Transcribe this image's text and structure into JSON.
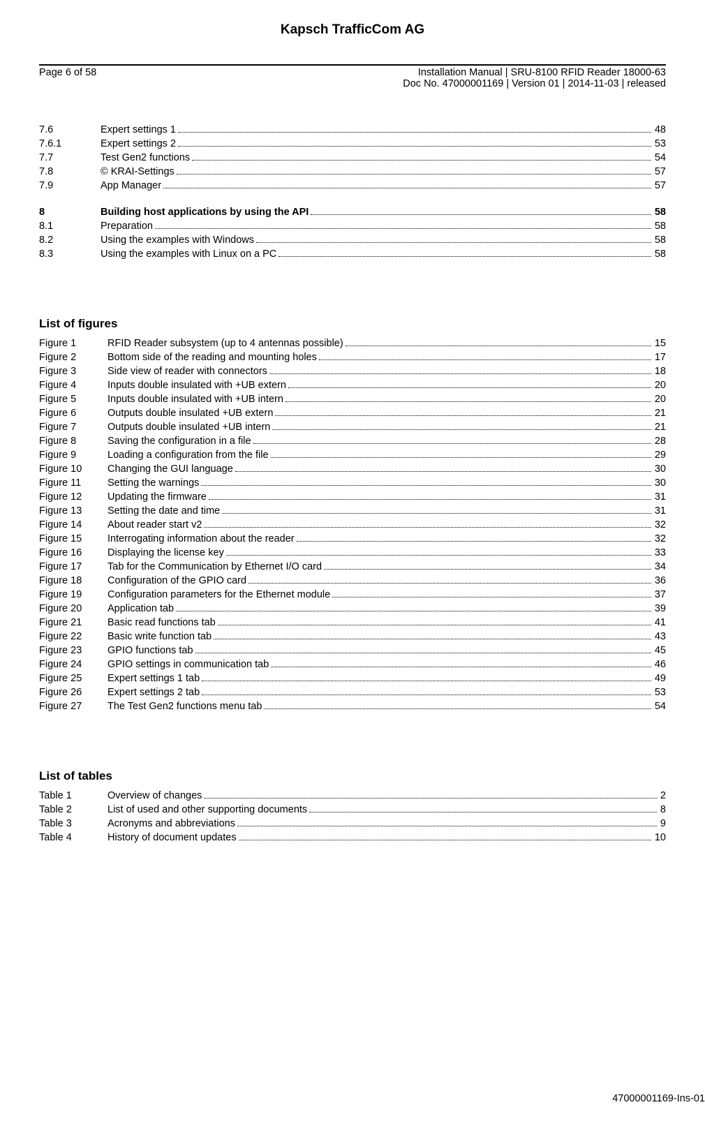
{
  "header": {
    "company": "Kapsch TrafficCom AG",
    "page_label": "Page 6 of 58",
    "doc_line1": "Installation Manual | SRU-8100 RFID Reader 18000-63",
    "doc_line2": "Doc No. 47000001169 | Version 01 | 2014-11-03 | released"
  },
  "toc_top": [
    {
      "num": "7.6",
      "title": "Expert settings 1",
      "page": "48",
      "bold": false
    },
    {
      "num": "7.6.1",
      "title": "Expert settings 2",
      "page": "53",
      "bold": false
    },
    {
      "num": "7.7",
      "title": "Test Gen2 functions",
      "page": "54",
      "bold": false
    },
    {
      "num": "7.8",
      "title": "© KRAI-Settings",
      "page": "57",
      "bold": false
    },
    {
      "num": "7.9",
      "title": "App Manager",
      "page": "57",
      "bold": false
    }
  ],
  "toc_section8_head": {
    "num": "8",
    "title": "Building host applications by using the API",
    "page": "58",
    "bold": true
  },
  "toc_section8": [
    {
      "num": "8.1",
      "title": "Preparation",
      "page": "58",
      "bold": false
    },
    {
      "num": "8.2",
      "title": "Using the examples with Windows",
      "page": "58",
      "bold": false
    },
    {
      "num": "8.3",
      "title": "Using the examples with Linux on a PC",
      "page": "58",
      "bold": false
    }
  ],
  "figures_heading": "List of figures",
  "figures": [
    {
      "num": "Figure 1",
      "title": "RFID Reader subsystem (up to 4 antennas possible)",
      "page": "15"
    },
    {
      "num": "Figure 2",
      "title": "Bottom side of the reading and mounting holes",
      "page": "17"
    },
    {
      "num": "Figure 3",
      "title": "Side view of reader with connectors",
      "page": "18"
    },
    {
      "num": "Figure 4",
      "title": "Inputs double insulated with +UB extern",
      "page": "20"
    },
    {
      "num": "Figure 5",
      "title": "Inputs double insulated with +UB intern",
      "page": "20"
    },
    {
      "num": "Figure 6",
      "title": "Outputs double insulated +UB extern",
      "page": "21"
    },
    {
      "num": "Figure 7",
      "title": "Outputs double insulated +UB intern",
      "page": "21"
    },
    {
      "num": "Figure 8",
      "title": "Saving the configuration in a file",
      "page": "28"
    },
    {
      "num": "Figure 9",
      "title": "Loading a configuration from the file",
      "page": "29"
    },
    {
      "num": "Figure 10",
      "title": "Changing the GUI language",
      "page": "30"
    },
    {
      "num": "Figure 11",
      "title": "Setting the warnings",
      "page": "30"
    },
    {
      "num": "Figure 12",
      "title": "Updating the firmware",
      "page": "31"
    },
    {
      "num": "Figure 13",
      "title": "Setting the date and time",
      "page": "31"
    },
    {
      "num": "Figure 14",
      "title": "About reader start v2",
      "page": "32"
    },
    {
      "num": "Figure 15",
      "title": "Interrogating information about the reader",
      "page": "32"
    },
    {
      "num": "Figure 16",
      "title": "Displaying the license key",
      "page": "33"
    },
    {
      "num": "Figure 17",
      "title": "Tab for the Communication by Ethernet I/O card",
      "page": "34"
    },
    {
      "num": "Figure 18",
      "title": "Configuration of the GPIO card",
      "page": "36"
    },
    {
      "num": "Figure 19",
      "title": "Configuration parameters for the Ethernet module",
      "page": "37"
    },
    {
      "num": "Figure 20",
      "title": "Application tab",
      "page": "39"
    },
    {
      "num": "Figure 21",
      "title": "Basic read functions tab",
      "page": "41"
    },
    {
      "num": "Figure 22",
      "title": "Basic write function tab",
      "page": "43"
    },
    {
      "num": "Figure 23",
      "title": "GPIO functions tab",
      "page": "45"
    },
    {
      "num": "Figure 24",
      "title": "GPIO settings in communication tab",
      "page": "46"
    },
    {
      "num": "Figure 25",
      "title": "Expert settings 1 tab",
      "page": "49"
    },
    {
      "num": "Figure 26",
      "title": "Expert settings 2 tab",
      "page": "53"
    },
    {
      "num": "Figure 27",
      "title": "The Test Gen2 functions menu tab",
      "page": "54"
    }
  ],
  "tables_heading": "List of tables",
  "tables": [
    {
      "num": "Table 1",
      "title": "Overview of changes",
      "page": "2"
    },
    {
      "num": "Table 2",
      "title": "List of used and other supporting documents",
      "page": "8"
    },
    {
      "num": "Table 3",
      "title": "Acronyms and abbreviations",
      "page": "9"
    },
    {
      "num": "Table 4",
      "title": "History of document updates",
      "page": "10"
    }
  ],
  "footer_id": "47000001169-Ins-01"
}
